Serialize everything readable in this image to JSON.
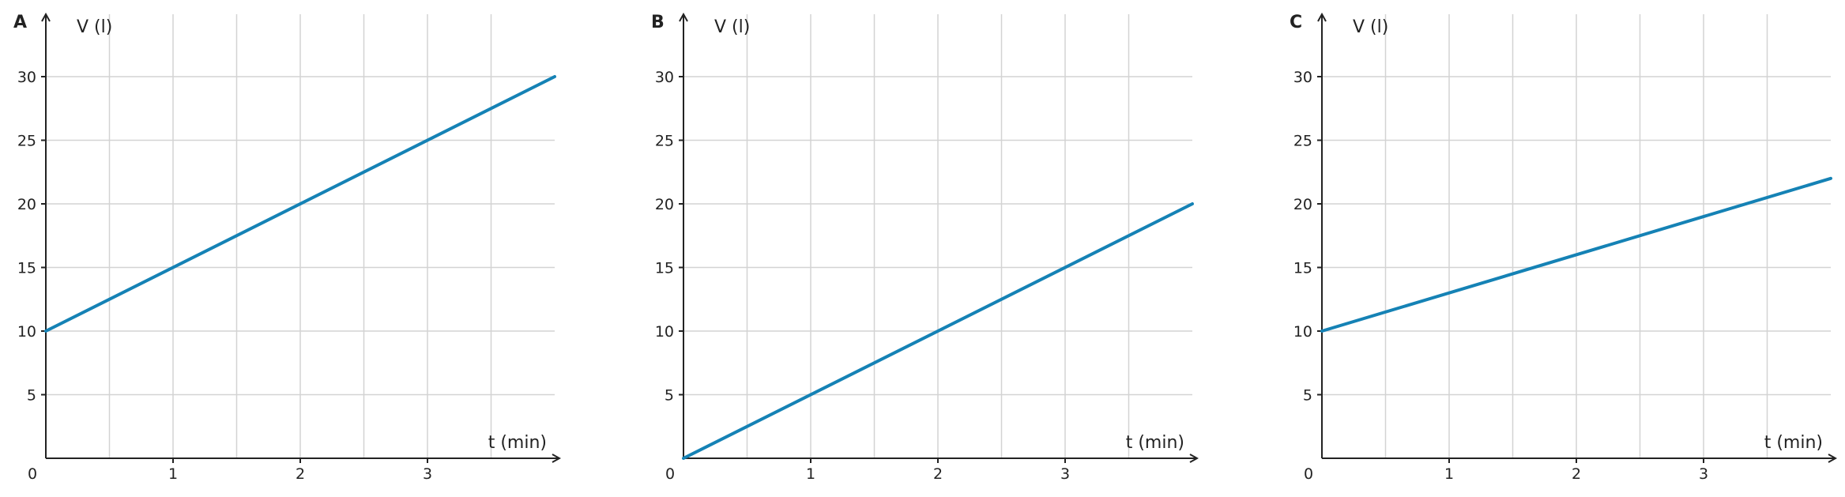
{
  "colors": {
    "series": "#1582b5",
    "grid": "#d3d3d3",
    "axis": "#222222"
  },
  "chart_data": [
    {
      "type": "line",
      "panel_label": "A",
      "xlabel": "t (min)",
      "ylabel": "V (l)",
      "xlim": [
        0,
        4
      ],
      "ylim": [
        0,
        35
      ],
      "xticks": [
        0,
        1,
        2,
        3
      ],
      "yticks": [
        5,
        10,
        15,
        20,
        25,
        30
      ],
      "origin_label": "0",
      "grid": true,
      "series": [
        {
          "x": [
            0,
            4
          ],
          "y": [
            10,
            30
          ]
        }
      ]
    },
    {
      "type": "line",
      "panel_label": "B",
      "xlabel": "t (min)",
      "ylabel": "V (l)",
      "xlim": [
        0,
        4
      ],
      "ylim": [
        0,
        35
      ],
      "xticks": [
        0,
        1,
        2,
        3
      ],
      "yticks": [
        5,
        10,
        15,
        20,
        25,
        30
      ],
      "origin_label": "0",
      "grid": true,
      "series": [
        {
          "x": [
            0,
            4
          ],
          "y": [
            0,
            20
          ]
        }
      ]
    },
    {
      "type": "line",
      "panel_label": "C",
      "xlabel": "t (min)",
      "ylabel": "V (l)",
      "xlim": [
        0,
        4
      ],
      "ylim": [
        0,
        35
      ],
      "xticks": [
        0,
        1,
        2,
        3
      ],
      "yticks": [
        5,
        10,
        15,
        20,
        25,
        30
      ],
      "origin_label": "0",
      "grid": true,
      "series": [
        {
          "x": [
            0,
            4
          ],
          "y": [
            10,
            22
          ]
        }
      ]
    }
  ]
}
